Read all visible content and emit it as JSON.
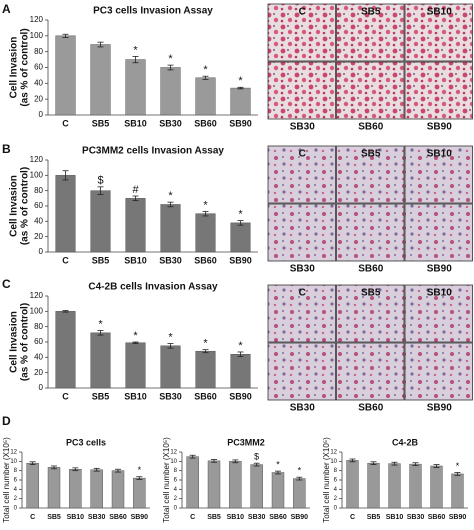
{
  "panel_labels": [
    "A",
    "B",
    "C",
    "D"
  ],
  "images": [
    [
      "C",
      "SB5",
      "SB10",
      "SB30",
      "SB60",
      "SB90"
    ],
    [
      "C",
      "SB5",
      "SB10",
      "SB30",
      "SB60",
      "SB90"
    ],
    [
      "C",
      "SB5",
      "SB10",
      "SB30",
      "SB60",
      "SB90"
    ]
  ],
  "chart_data": [
    {
      "type": "bar",
      "title": "PC3 cells Invasion Assay",
      "y_label": [
        "Cell Invasion",
        "(as % of control)"
      ],
      "categories": [
        "C",
        "SB5",
        "SB10",
        "SB30",
        "SB60",
        "SB90"
      ],
      "values": [
        100,
        89,
        70,
        60,
        47,
        34
      ],
      "errors": [
        2,
        3,
        4,
        3,
        2,
        1
      ],
      "bar_labels": [
        null,
        null,
        "*",
        "*",
        "*",
        "*"
      ],
      "color": "#9a9a9a",
      "ylim": [
        0,
        120
      ],
      "yticks": [
        0,
        20,
        40,
        60,
        80,
        100,
        120
      ]
    },
    {
      "type": "bar",
      "title": "PC3MM2 cells Invasion Assay",
      "y_label": [
        "Cell Invasion",
        "(as % of control)"
      ],
      "categories": [
        "C",
        "SB5",
        "SB10",
        "SB30",
        "SB60",
        "SB90"
      ],
      "values": [
        100,
        80,
        70,
        62,
        50,
        38
      ],
      "errors": [
        6,
        5,
        3,
        3,
        3,
        3
      ],
      "bar_labels": [
        null,
        "$",
        "#",
        "*",
        "*",
        "*"
      ],
      "color": "#777777",
      "ylim": [
        0,
        120
      ],
      "yticks": [
        0,
        20,
        40,
        60,
        80,
        100,
        120
      ]
    },
    {
      "type": "bar",
      "title": "C4-2B cells Invasion Assay",
      "y_label": [
        "Cell Invasion",
        "(as % of control)"
      ],
      "categories": [
        "C",
        "SB5",
        "SB10",
        "SB30",
        "SB60",
        "SB90"
      ],
      "values": [
        100,
        72,
        59,
        55,
        48,
        44
      ],
      "errors": [
        1,
        3,
        1,
        3,
        2,
        3
      ],
      "bar_labels": [
        null,
        "*",
        "*",
        "*",
        "*",
        "*"
      ],
      "color": "#777777",
      "ylim": [
        0,
        120
      ],
      "yticks": [
        0,
        20,
        40,
        60,
        80,
        100,
        120
      ]
    },
    {
      "type": "bar",
      "title": "PC3 cells",
      "y_label": [
        "Total cell number (X10⁵)"
      ],
      "categories": [
        "C",
        "SB5",
        "SB10",
        "SB30",
        "SB60",
        "SB90"
      ],
      "values": [
        9.6,
        8.7,
        8.3,
        8.2,
        8.0,
        6.4
      ],
      "errors": [
        0.3,
        0.3,
        0.3,
        0.3,
        0.3,
        0.3
      ],
      "bar_labels": [
        null,
        null,
        null,
        null,
        null,
        "*"
      ],
      "color": "#999999",
      "ylim": [
        0,
        12
      ],
      "yticks": [
        0,
        2,
        4,
        6,
        8,
        10,
        12
      ]
    },
    {
      "type": "bar",
      "title": "PC3MM2",
      "y_label": [
        "Total cell number (X10⁵)"
      ],
      "categories": [
        "C",
        "SB5",
        "SB10",
        "SB30",
        "SB60",
        "SB90"
      ],
      "values": [
        11,
        10.1,
        10,
        9.3,
        7.6,
        6.3
      ],
      "errors": [
        0.3,
        0.3,
        0.3,
        0.3,
        0.3,
        0.3
      ],
      "bar_labels": [
        null,
        null,
        null,
        "$",
        "*",
        "*"
      ],
      "color": "#999999",
      "ylim": [
        0,
        12
      ],
      "yticks": [
        0,
        2,
        4,
        6,
        8,
        10,
        12
      ]
    },
    {
      "type": "bar",
      "title": "C4-2B",
      "y_label": [
        "Total cell number (X10⁵)"
      ],
      "categories": [
        "C",
        "SB5",
        "SB10",
        "SB30",
        "SB60",
        "SB90"
      ],
      "values": [
        10.2,
        9.6,
        9.5,
        9.4,
        9.0,
        7.3
      ],
      "errors": [
        0.3,
        0.3,
        0.3,
        0.3,
        0.3,
        0.3
      ],
      "bar_labels": [
        null,
        null,
        null,
        null,
        null,
        "*"
      ],
      "color": "#999999",
      "ylim": [
        0,
        12
      ],
      "yticks": [
        0,
        2,
        4,
        6,
        8,
        10,
        12
      ]
    }
  ]
}
